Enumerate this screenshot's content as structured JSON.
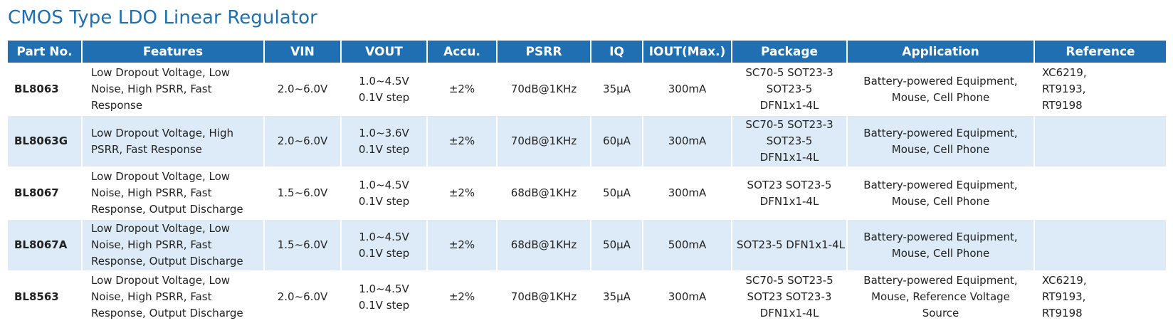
{
  "title": "CMOS Type LDO Linear Regulator",
  "headers": [
    "Part No.",
    "Features",
    "VIN",
    "VOUT",
    "Accu.",
    "PSRR",
    "IQ",
    "IOUT(Max.)",
    "Package",
    "Application",
    "Reference"
  ],
  "rows": [
    {
      "part": "BL8063",
      "features": [
        "Low Dropout Voltage, Low",
        "Noise, High PSRR, Fast",
        "Response"
      ],
      "vin": "2.0~6.0V",
      "vout": [
        "1.0~4.5V",
        "0.1V step"
      ],
      "accu": "±2%",
      "psrr": "70dB@1KHz",
      "iq": "35µA",
      "iout": "300mA",
      "package": [
        "SC70-5 SOT23-3",
        "SOT23-5",
        "DFN1x1-4L"
      ],
      "application": [
        "Battery-powered Equipment,",
        "Mouse, Cell Phone"
      ],
      "reference": [
        "XC6219,",
        "RT9193,",
        "RT9198"
      ]
    },
    {
      "part": "BL8063G",
      "features": [
        "Low Dropout Voltage, High",
        "PSRR, Fast Response"
      ],
      "vin": "2.0~6.0V",
      "vout": [
        "1.0~3.6V",
        "0.1V step"
      ],
      "accu": "±2%",
      "psrr": "70dB@1KHz",
      "iq": "60µA",
      "iout": "300mA",
      "package": [
        "SC70-5 SOT23-3",
        "SOT23-5",
        "DFN1x1-4L"
      ],
      "application": [
        "Battery-powered Equipment,",
        "Mouse, Cell Phone"
      ],
      "reference": []
    },
    {
      "part": "BL8067",
      "features": [
        "Low Dropout Voltage, Low",
        "Noise, High PSRR, Fast",
        "Response, Output Discharge"
      ],
      "vin": "1.5~6.0V",
      "vout": [
        "1.0~4.5V",
        "0.1V step"
      ],
      "accu": "±2%",
      "psrr": "68dB@1KHz",
      "iq": "50µA",
      "iout": "300mA",
      "package": [
        "SOT23 SOT23-5",
        "DFN1x1-4L"
      ],
      "application": [
        "Battery-powered Equipment,",
        "Mouse, Cell Phone"
      ],
      "reference": []
    },
    {
      "part": "BL8067A",
      "features": [
        "Low Dropout Voltage, Low",
        "Noise, High PSRR, Fast",
        "Response, Output Discharge"
      ],
      "vin": "1.5~6.0V",
      "vout": [
        "1.0~4.5V",
        "0.1V step"
      ],
      "accu": "±2%",
      "psrr": "68dB@1KHz",
      "iq": "50µA",
      "iout": "500mA",
      "package": [
        "SOT23-5 DFN1x1-4L"
      ],
      "application": [
        "Battery-powered Equipment,",
        "Mouse, Cell Phone"
      ],
      "reference": []
    },
    {
      "part": "BL8563",
      "features": [
        "Low Dropout Voltage, Low",
        "Noise, High PSRR, Fast",
        "Response, Output Discharge"
      ],
      "vin": "2.0~6.0V",
      "vout": [
        "1.0~4.5V",
        "0.1V step"
      ],
      "accu": "±2%",
      "psrr": "70dB@1KHz",
      "iq": "35µA",
      "iout": "300mA",
      "package": [
        "SC70-5 SOT23-5",
        "SOT23 SOT23-3",
        "DFN1x1-4L"
      ],
      "application": [
        "Battery-powered Equipment,",
        "Mouse, Reference Voltage",
        "Source"
      ],
      "reference": [
        "XC6219,",
        "RT9193,",
        "RT9198"
      ]
    }
  ],
  "colors": {
    "header_bg": "#1f6fb2",
    "title": "#1f6fb2",
    "alt_row_bg": "#dcebf7"
  }
}
